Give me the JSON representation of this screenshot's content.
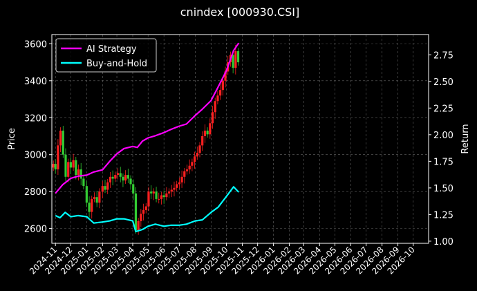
{
  "chart_data": {
    "type": "line",
    "title": "cnindex [000930.CSI]",
    "xlabel": "",
    "ylabel": "Price",
    "y2label": "Return",
    "ylim": [
      2520,
      3650
    ],
    "y2lim": [
      0.98,
      2.94
    ],
    "yticks": [
      2600,
      2800,
      3000,
      3200,
      3400,
      3600
    ],
    "y2ticks": [
      "1.00",
      "1.25",
      "1.50",
      "1.75",
      "2.00",
      "2.25",
      "2.50",
      "2.75"
    ],
    "xticks": [
      "2024-11",
      "2024-12",
      "2025-01",
      "2025-02",
      "2025-03",
      "2025-04",
      "2025-05",
      "2025-06",
      "2025-07",
      "2025-08",
      "2025-09",
      "2025-10",
      "2025-11",
      "2025-12",
      "2026-01",
      "2026-02",
      "2026-03",
      "2026-04",
      "2026-05",
      "2026-06",
      "2026-07",
      "2026-08",
      "2026-09",
      "2026-10"
    ],
    "grid": true,
    "legend_position": "top-left",
    "series": [
      {
        "name": "AI Strategy",
        "axis": "right",
        "color": "#ff00ff",
        "x": [
          "2024-11-01",
          "2024-11-15",
          "2024-12-01",
          "2024-12-15",
          "2025-01-01",
          "2025-01-15",
          "2025-02-01",
          "2025-02-15",
          "2025-03-01",
          "2025-03-15",
          "2025-04-01",
          "2025-04-10",
          "2025-04-20",
          "2025-05-01",
          "2025-05-15",
          "2025-06-01",
          "2025-06-15",
          "2025-07-01",
          "2025-07-15",
          "2025-08-01",
          "2025-08-15",
          "2025-09-01",
          "2025-09-15",
          "2025-10-01",
          "2025-10-15",
          "2025-10-25"
        ],
        "values": [
          1.45,
          1.53,
          1.59,
          1.61,
          1.62,
          1.65,
          1.67,
          1.75,
          1.82,
          1.87,
          1.89,
          1.88,
          1.94,
          1.97,
          1.99,
          2.02,
          2.05,
          2.08,
          2.1,
          2.18,
          2.24,
          2.32,
          2.45,
          2.6,
          2.79,
          2.86
        ]
      },
      {
        "name": "Buy-and-Hold",
        "axis": "right",
        "color": "#00ffff",
        "x": [
          "2024-11-01",
          "2024-11-10",
          "2024-11-20",
          "2024-12-01",
          "2024-12-15",
          "2025-01-01",
          "2025-01-15",
          "2025-02-01",
          "2025-02-15",
          "2025-03-01",
          "2025-03-15",
          "2025-04-01",
          "2025-04-07",
          "2025-04-20",
          "2025-05-01",
          "2025-05-15",
          "2025-06-01",
          "2025-06-15",
          "2025-07-01",
          "2025-07-15",
          "2025-08-01",
          "2025-08-15",
          "2025-09-01",
          "2025-09-15",
          "2025-10-01",
          "2025-10-15",
          "2025-10-25"
        ],
        "values": [
          1.24,
          1.22,
          1.27,
          1.23,
          1.24,
          1.23,
          1.17,
          1.18,
          1.19,
          1.21,
          1.21,
          1.19,
          1.09,
          1.11,
          1.14,
          1.16,
          1.14,
          1.15,
          1.15,
          1.16,
          1.19,
          1.2,
          1.27,
          1.32,
          1.42,
          1.51,
          1.46
        ]
      }
    ],
    "candles": {
      "axis": "left",
      "up_color": "#ff2020",
      "down_color": "#33cc33",
      "x": [
        "2024-10-28",
        "2024-11-01",
        "2024-11-06",
        "2024-11-11",
        "2024-11-16",
        "2024-11-21",
        "2024-11-26",
        "2024-12-01",
        "2024-12-06",
        "2024-12-11",
        "2024-12-16",
        "2024-12-21",
        "2024-12-26",
        "2025-01-01",
        "2025-01-06",
        "2025-01-11",
        "2025-01-16",
        "2025-01-21",
        "2025-01-26",
        "2025-02-01",
        "2025-02-06",
        "2025-02-11",
        "2025-02-16",
        "2025-02-21",
        "2025-02-26",
        "2025-03-03",
        "2025-03-08",
        "2025-03-13",
        "2025-03-18",
        "2025-03-23",
        "2025-03-28",
        "2025-04-02",
        "2025-04-07",
        "2025-04-12",
        "2025-04-17",
        "2025-04-22",
        "2025-04-27",
        "2025-05-02",
        "2025-05-07",
        "2025-05-12",
        "2025-05-17",
        "2025-05-22",
        "2025-05-27",
        "2025-06-01",
        "2025-06-06",
        "2025-06-11",
        "2025-06-16",
        "2025-06-21",
        "2025-06-26",
        "2025-07-01",
        "2025-07-06",
        "2025-07-11",
        "2025-07-16",
        "2025-07-21",
        "2025-07-26",
        "2025-07-31",
        "2025-08-05",
        "2025-08-10",
        "2025-08-15",
        "2025-08-20",
        "2025-08-25",
        "2025-08-30",
        "2025-09-04",
        "2025-09-09",
        "2025-09-14",
        "2025-09-19",
        "2025-09-24",
        "2025-09-29",
        "2025-10-04",
        "2025-10-09",
        "2025-10-14",
        "2025-10-19",
        "2025-10-24"
      ],
      "close": [
        2950,
        2920,
        3050,
        3130,
        3000,
        2880,
        2960,
        2930,
        2970,
        2890,
        2920,
        2870,
        2830,
        2740,
        2690,
        2760,
        2770,
        2740,
        2800,
        2830,
        2810,
        2850,
        2880,
        2870,
        2890,
        2900,
        2880,
        2860,
        2890,
        2870,
        2840,
        2790,
        2590,
        2640,
        2680,
        2700,
        2720,
        2800,
        2790,
        2800,
        2760,
        2760,
        2780,
        2770,
        2790,
        2800,
        2810,
        2820,
        2840,
        2850,
        2880,
        2910,
        2920,
        2940,
        2960,
        2990,
        3010,
        3050,
        3100,
        3130,
        3110,
        3170,
        3230,
        3290,
        3320,
        3350,
        3400,
        3450,
        3500,
        3540,
        3470,
        3560,
        3500
      ]
    }
  },
  "legend": {
    "items": [
      {
        "label": "AI Strategy",
        "color": "#ff00ff"
      },
      {
        "label": "Buy-and-Hold",
        "color": "#00ffff"
      }
    ]
  }
}
